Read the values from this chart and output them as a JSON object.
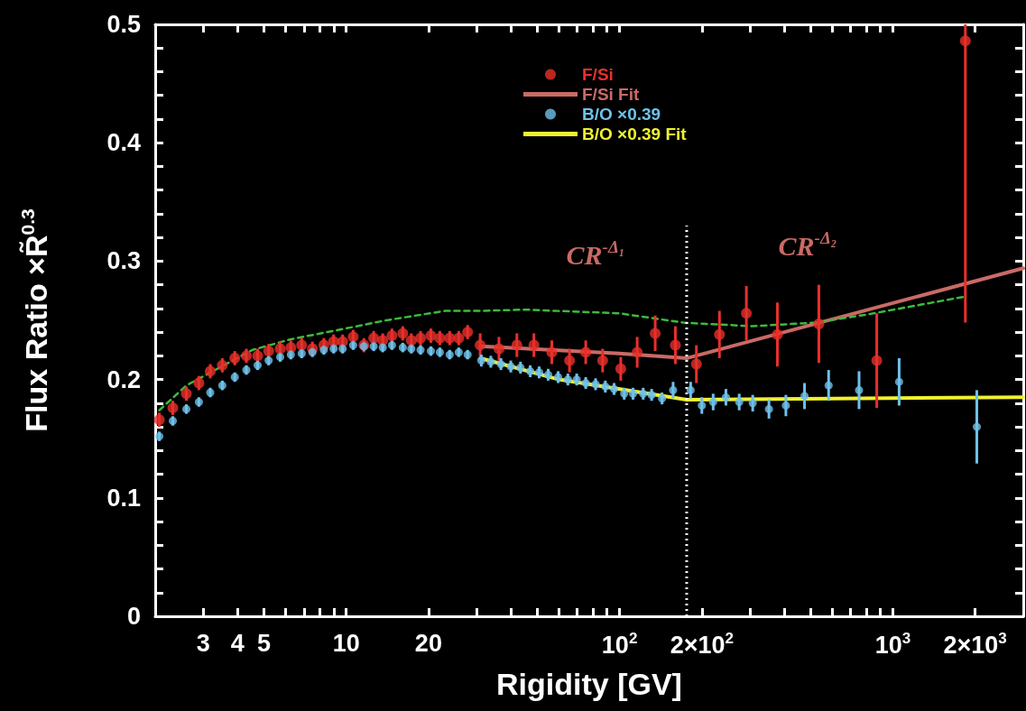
{
  "chart_data": {
    "type": "scatter",
    "xlabel": "Rigidity [GV]",
    "ylabel": "Flux Ratio ×R̃$^{0.3}$",
    "log": "x",
    "grid": false,
    "legend": "top",
    "marker": "circle",
    "xlim": [
      2,
      3000
    ],
    "ylim": [
      0,
      0.5
    ],
    "xticks": [
      {
        "value": 2,
        "label": null
      },
      3,
      4,
      5,
      {
        "value": 6,
        "label": null
      },
      {
        "value": 7,
        "label": null
      },
      {
        "value": 8,
        "label": null
      },
      {
        "value": 9,
        "label": null
      },
      10,
      20,
      {
        "value": 30,
        "label": null
      },
      {
        "value": 40,
        "label": null
      },
      {
        "value": 50,
        "label": null
      },
      {
        "value": 60,
        "label": null
      },
      {
        "value": 70,
        "label": null
      },
      {
        "value": 80,
        "label": null
      },
      {
        "value": 90,
        "label": null
      },
      {
        "value": 100,
        "label": "10$^{2}$"
      },
      {
        "value": 200,
        "label": "2×10$^{2}$"
      },
      {
        "value": 300,
        "label": null
      },
      {
        "value": 400,
        "label": null
      },
      {
        "value": 500,
        "label": null
      },
      {
        "value": 600,
        "label": null
      },
      {
        "value": 700,
        "label": null
      },
      {
        "value": 800,
        "label": null
      },
      {
        "value": 900,
        "label": null
      },
      {
        "value": 1000,
        "label": "10$^{3}$"
      },
      {
        "value": 2000,
        "label": "2×10$^{3}$"
      },
      {
        "value": 3000,
        "label": null
      }
    ],
    "yticks": [
      0,
      {
        "value": 0.02,
        "label": null
      },
      {
        "value": 0.04,
        "label": null
      },
      {
        "value": 0.06,
        "label": null
      },
      {
        "value": 0.08,
        "label": null
      },
      0.1,
      {
        "value": 0.12,
        "label": null
      },
      {
        "value": 0.14,
        "label": null
      },
      {
        "value": 0.16,
        "label": null
      },
      {
        "value": 0.18,
        "label": null
      },
      0.2,
      {
        "value": 0.22,
        "label": null
      },
      {
        "value": 0.24,
        "label": null
      },
      {
        "value": 0.26,
        "label": null
      },
      {
        "value": 0.28,
        "label": null
      },
      0.3,
      {
        "value": 0.32,
        "label": null
      },
      {
        "value": 0.34,
        "label": null
      },
      {
        "value": 0.36,
        "label": null
      },
      {
        "value": 0.38,
        "label": null
      },
      0.4,
      {
        "value": 0.42,
        "label": null
      },
      {
        "value": 0.44,
        "label": null
      },
      {
        "value": 0.46,
        "label": null
      },
      {
        "value": 0.48,
        "label": null
      },
      0.5
    ],
    "series": [
      {
        "name": "F/Si",
        "type": "scatter",
        "color": "#e8302a",
        "x": [
          2.07,
          2.32,
          2.6,
          2.89,
          3.18,
          3.52,
          3.91,
          4.31,
          4.74,
          5.2,
          5.73,
          6.27,
          6.87,
          7.52,
          8.28,
          8.99,
          9.7,
          10.6,
          11.6,
          12.6,
          13.6,
          14.7,
          16.1,
          17.3,
          18.7,
          20.4,
          22,
          23.9,
          25.8,
          27.8,
          30.9,
          36.2,
          42.1,
          48.6,
          56.5,
          65.6,
          75.2,
          86.7,
          101,
          116,
          135,
          160,
          191,
          232,
          291,
          378,
          536,
          873,
          1841
        ],
        "values": [
          0.166,
          0.176,
          0.188,
          0.197,
          0.207,
          0.212,
          0.218,
          0.22,
          0.22,
          0.224,
          0.226,
          0.227,
          0.229,
          0.226,
          0.229,
          0.232,
          0.232,
          0.236,
          0.229,
          0.235,
          0.233,
          0.237,
          0.239,
          0.233,
          0.235,
          0.237,
          0.235,
          0.235,
          0.235,
          0.24,
          0.229,
          0.226,
          0.229,
          0.229,
          0.223,
          0.216,
          0.223,
          0.216,
          0.209,
          0.223,
          0.239,
          0.229,
          0.213,
          0.238,
          0.256,
          0.238,
          0.247,
          0.216,
          0.486
        ],
        "errors": [
          0.006,
          0.006,
          0.006,
          0.006,
          0.006,
          0.006,
          0.006,
          0.006,
          0.006,
          0.006,
          0.006,
          0.006,
          0.006,
          0.006,
          0.006,
          0.006,
          0.006,
          0.006,
          0.006,
          0.006,
          0.006,
          0.006,
          0.006,
          0.006,
          0.006,
          0.006,
          0.006,
          0.006,
          0.006,
          0.006,
          0.01,
          0.01,
          0.01,
          0.01,
          0.01,
          0.01,
          0.01,
          0.01,
          0.01,
          0.013,
          0.015,
          0.016,
          0.016,
          0.02,
          0.023,
          0.027,
          0.033,
          0.04,
          [
            0.248,
            0.5
          ]
        ]
      },
      {
        "name": "F/Si Fit",
        "type": "line",
        "color": "#c96a66",
        "marker": "none",
        "x": [
          31,
          100,
          176,
          3000
        ],
        "values": [
          0.228,
          0.222,
          0.218,
          0.294
        ]
      },
      {
        "type": "line",
        "color": "#3cba3c",
        "marker": "none",
        "line_style": "dashed",
        "x": [
          2.07,
          2.6,
          4.54,
          6.27,
          10.4,
          14,
          23,
          31,
          45,
          99,
          172,
          305,
          515,
          810,
          1830
        ],
        "values": [
          0.174,
          0.195,
          0.225,
          0.234,
          0.244,
          0.25,
          0.258,
          0.258,
          0.259,
          0.256,
          0.248,
          0.245,
          0.248,
          0.255,
          0.27
        ]
      },
      {
        "name": "B/O ×0.39",
        "type": "scatter",
        "color": "#6ec1ea",
        "x": [
          2.07,
          2.32,
          2.6,
          2.89,
          3.18,
          3.52,
          3.91,
          4.31,
          4.74,
          5.2,
          5.73,
          6.27,
          6.87,
          7.52,
          8.28,
          8.99,
          9.7,
          10.6,
          11.6,
          12.6,
          13.6,
          14.7,
          16.1,
          17.3,
          18.7,
          20.4,
          22,
          23.9,
          25.8,
          27.8,
          31.2,
          33.8,
          36.8,
          40,
          43.4,
          47.1,
          50.8,
          54.8,
          59.6,
          64.7,
          69.7,
          75.2,
          81.7,
          88.7,
          95.5,
          104,
          112,
          122,
          131,
          143,
          157,
          182,
          200,
          220,
          245,
          274,
          307,
          352,
          406,
          475,
          582,
          752,
          1054,
          2028
        ],
        "values": [
          0.152,
          0.165,
          0.175,
          0.181,
          0.189,
          0.195,
          0.202,
          0.208,
          0.212,
          0.216,
          0.219,
          0.221,
          0.222,
          0.223,
          0.225,
          0.226,
          0.226,
          0.229,
          0.228,
          0.228,
          0.227,
          0.229,
          0.227,
          0.226,
          0.225,
          0.224,
          0.223,
          0.221,
          0.223,
          0.221,
          0.216,
          0.215,
          0.213,
          0.211,
          0.21,
          0.207,
          0.206,
          0.204,
          0.202,
          0.2,
          0.2,
          0.197,
          0.196,
          0.194,
          0.192,
          0.188,
          0.188,
          0.188,
          0.187,
          0.184,
          0.191,
          0.191,
          0.178,
          0.181,
          0.185,
          0.181,
          0.18,
          0.175,
          0.178,
          0.186,
          0.195,
          0.191,
          0.198,
          0.16
        ],
        "errors": [
          0.004,
          0.004,
          0.004,
          0.004,
          0.004,
          0.004,
          0.004,
          0.004,
          0.004,
          0.004,
          0.004,
          0.004,
          0.004,
          0.004,
          0.004,
          0.004,
          0.004,
          0.004,
          0.004,
          0.004,
          0.004,
          0.004,
          0.004,
          0.004,
          0.004,
          0.004,
          0.004,
          0.004,
          0.004,
          0.004,
          0.005,
          0.005,
          0.005,
          0.005,
          0.005,
          0.005,
          0.005,
          0.005,
          0.005,
          0.005,
          0.005,
          0.005,
          0.005,
          0.005,
          0.005,
          0.005,
          0.005,
          0.005,
          0.005,
          0.005,
          0.007,
          0.007,
          0.007,
          0.007,
          0.007,
          0.007,
          0.007,
          0.008,
          0.009,
          0.011,
          0.013,
          0.016,
          0.02,
          0.031
        ]
      },
      {
        "name": "B/O ×0.39 Fit",
        "type": "line",
        "color": "#f0f030",
        "marker": "none",
        "x": [
          31,
          60,
          176,
          3000
        ],
        "values": [
          0.218,
          0.2,
          0.183,
          0.185
        ]
      }
    ],
    "ref_lines": [
      {
        "axis": "x",
        "value": 176,
        "color": "#ffffff",
        "line_style": "dotted"
      }
    ],
    "annotations": [
      "CR$^{-Δ₁}$",
      "CR$^{-Δ₂}$"
    ]
  }
}
